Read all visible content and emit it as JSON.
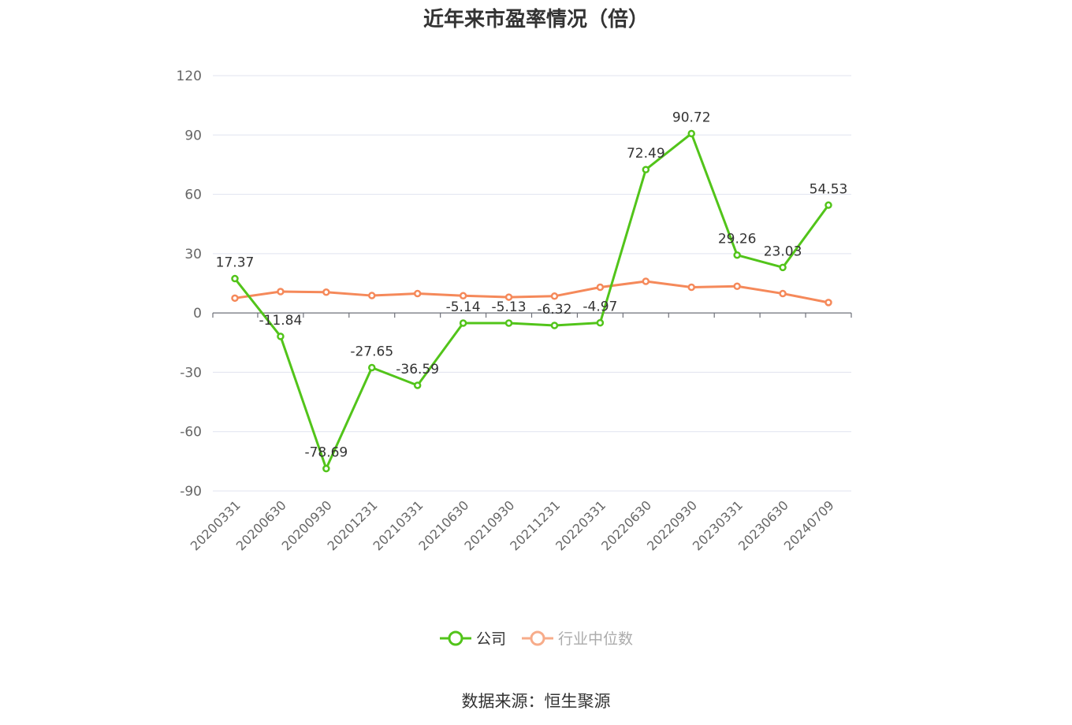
{
  "title": "近年来市盈率情况（倍）",
  "source": "数据来源：恒生聚源",
  "chart_data": {
    "type": "line",
    "title": "近年来市盈率情况（倍）",
    "categories": [
      "20200331",
      "20200630",
      "20200930",
      "20201231",
      "20210331",
      "20210630",
      "20210930",
      "20211231",
      "20220331",
      "20220630",
      "20220930",
      "20230331",
      "20230630",
      "20240709"
    ],
    "y_ticks": [
      -90,
      -60,
      -30,
      0,
      30,
      60,
      90,
      120
    ],
    "ylim": [
      -90,
      120
    ],
    "grid": true,
    "legend_position": "bottom-center",
    "series": [
      {
        "name": "公司",
        "color": "#52c41a",
        "values": [
          17.37,
          -11.84,
          -78.69,
          -27.65,
          -36.59,
          -5.14,
          -5.13,
          -6.32,
          -4.97,
          72.49,
          90.72,
          29.26,
          23.03,
          54.53
        ],
        "labels": [
          "17.37",
          "-11.84",
          "-78.69",
          "-27.65",
          "-36.59",
          "-5.14",
          "-5.13",
          "-6.32",
          "-4.97",
          "72.49",
          "90.72",
          "29.26",
          "23.03",
          "54.53"
        ]
      },
      {
        "name": "行业中位数",
        "color": "#f5895a",
        "values": [
          7.5,
          10.8,
          10.5,
          8.8,
          9.8,
          8.7,
          8.0,
          8.5,
          13.0,
          16.0,
          13.0,
          13.5,
          9.8,
          5.3
        ]
      }
    ]
  }
}
